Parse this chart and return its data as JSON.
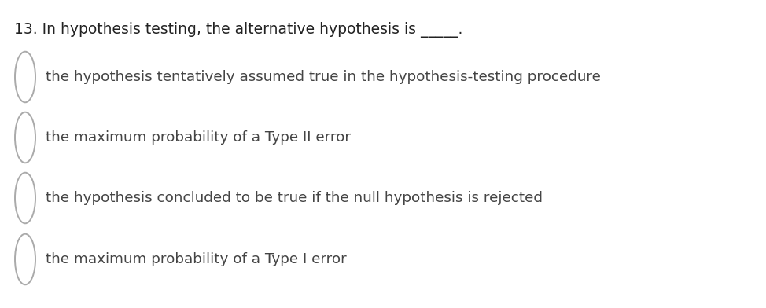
{
  "background_color": "#ffffff",
  "question": "13. In hypothesis testing, the alternative hypothesis is _____.",
  "question_fontsize": 13.5,
  "question_color": "#222222",
  "options": [
    "the hypothesis tentatively assumed true in the hypothesis-testing procedure",
    "the maximum probability of a Type II error",
    "the hypothesis concluded to be true if the null hypothesis is rejected",
    "the maximum probability of a Type I error"
  ],
  "option_fontsize": 13.2,
  "option_color": "#444444",
  "circle_color": "#aaaaaa",
  "circle_linewidth": 1.4
}
